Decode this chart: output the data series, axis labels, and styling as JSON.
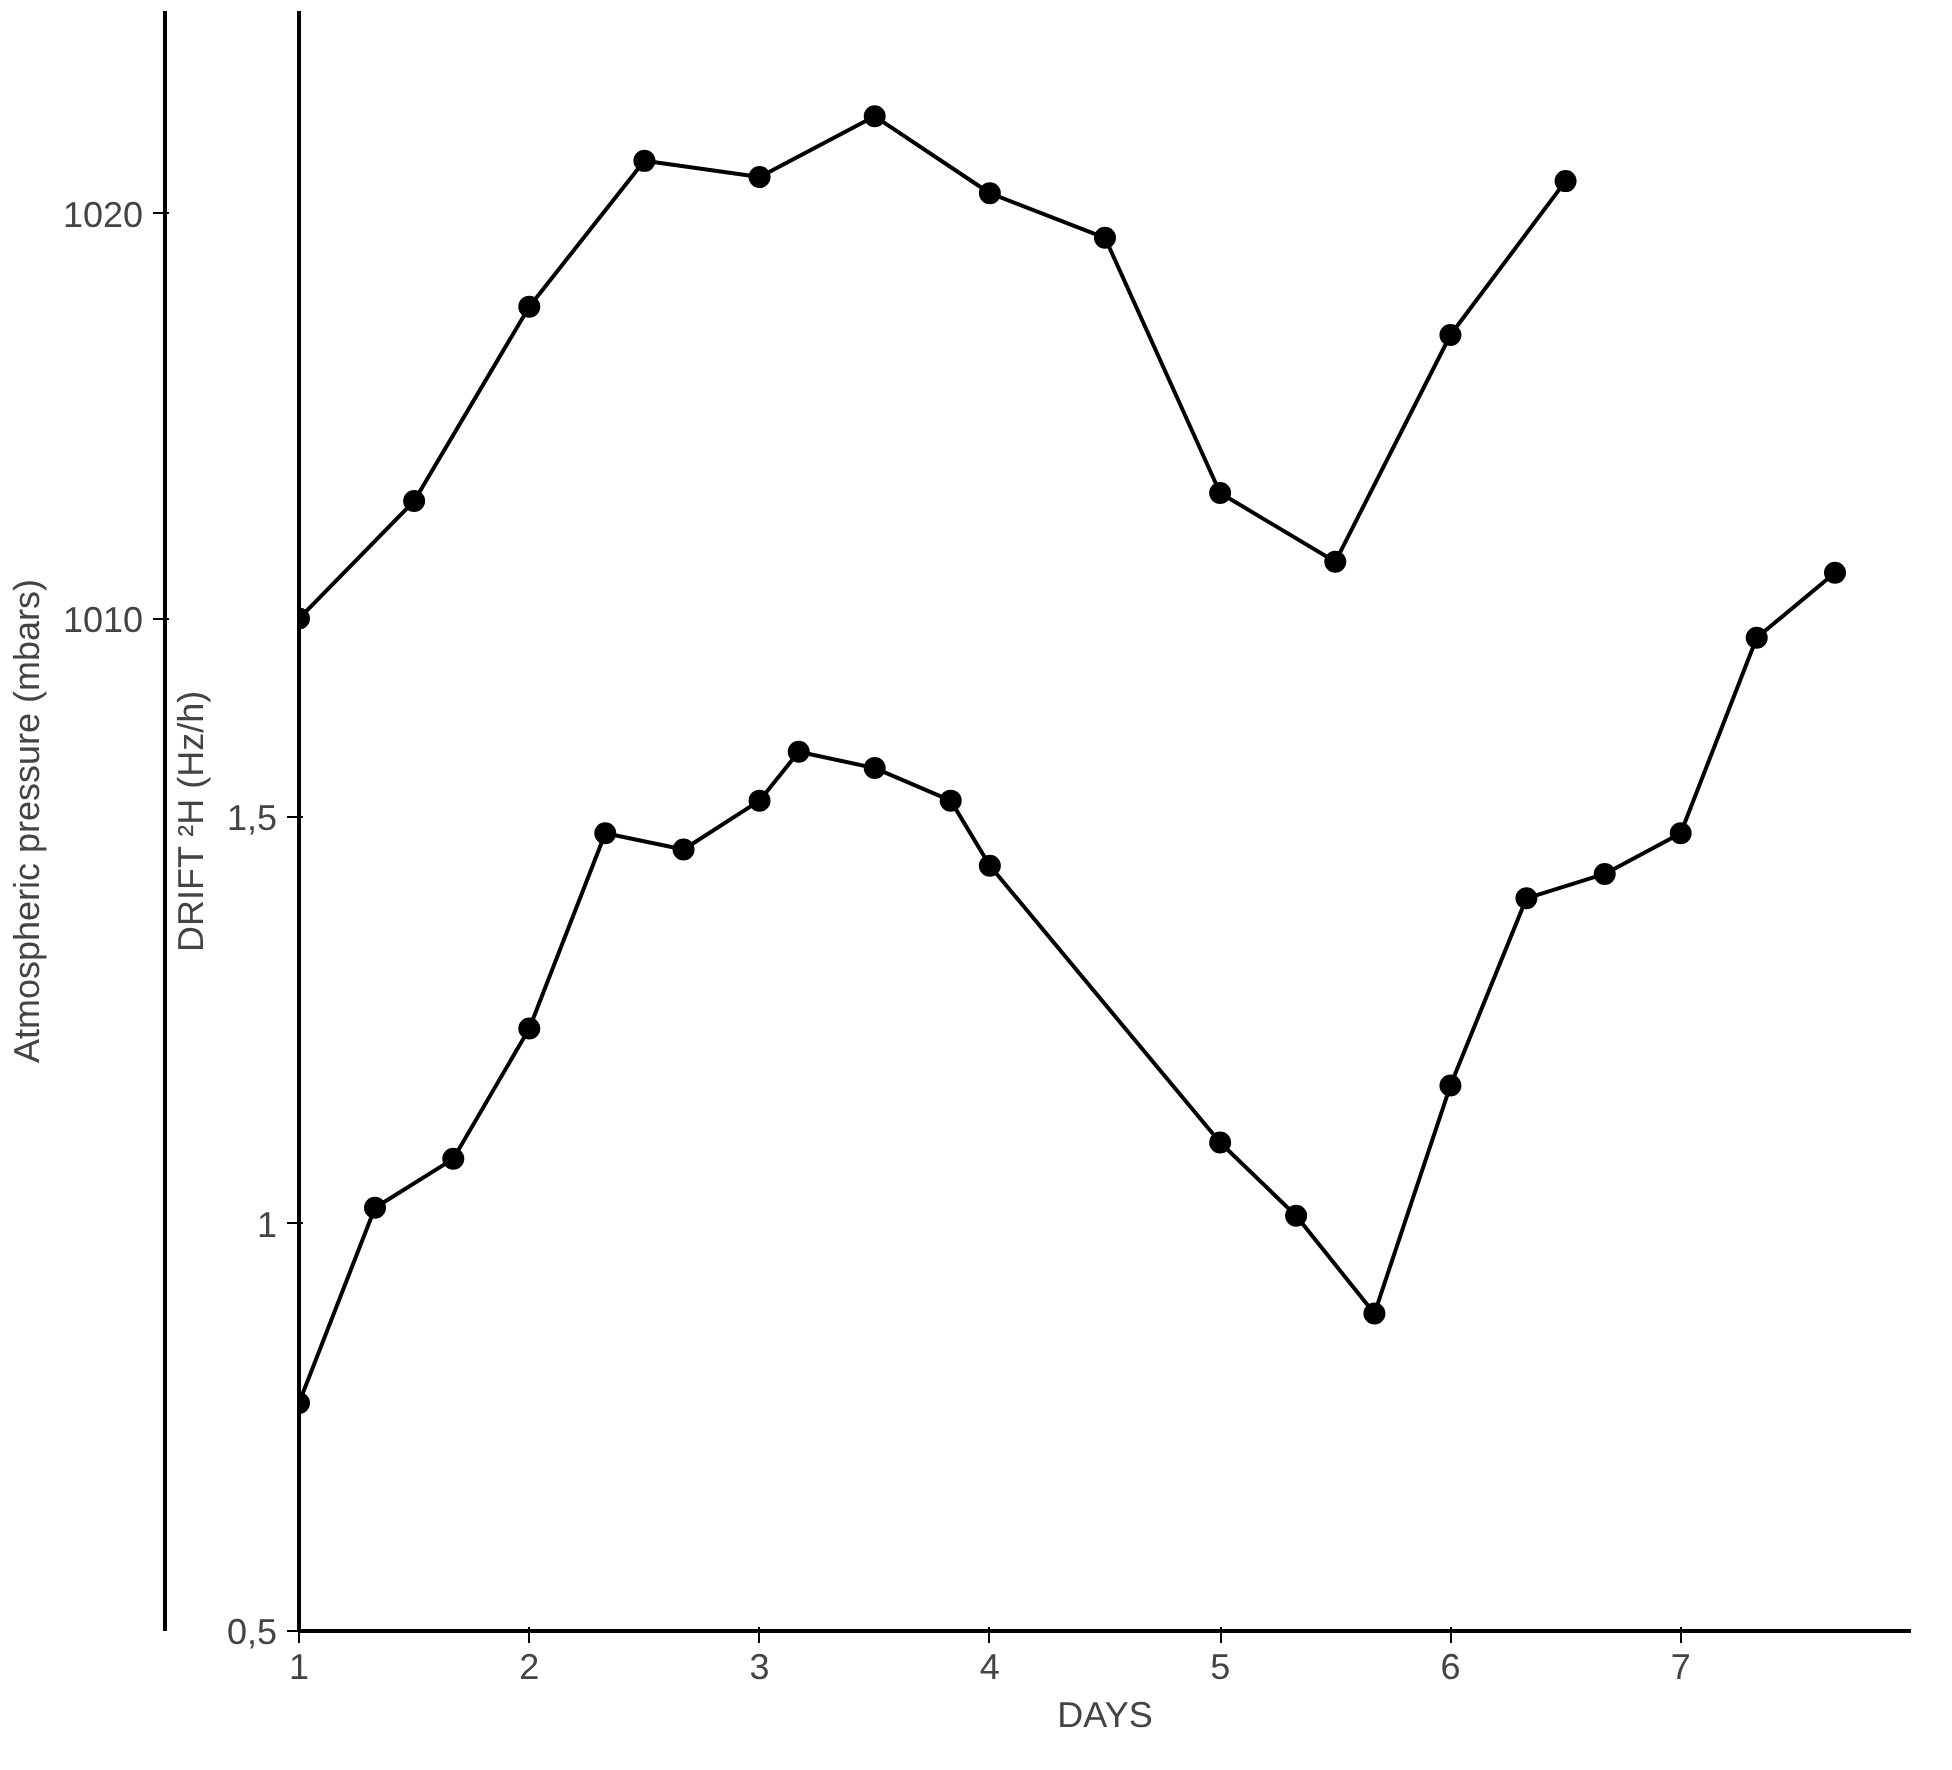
{
  "chart_data": {
    "type": "line",
    "xlabel": "DAYS",
    "ylabel": "DRIFT ²H (Hz/h)",
    "y2label": "Atmospheric pressure (mbars)",
    "xlim": [
      1,
      8
    ],
    "xticks": [
      1,
      2,
      3,
      4,
      5,
      6,
      7
    ],
    "ylim": [
      0.5,
      2.49
    ],
    "yticks": [
      {
        "value": 0.5,
        "label": "0,5"
      },
      1,
      {
        "value": 1.5,
        "label": "1,5"
      }
    ],
    "y2lim": [
      985,
      1025
    ],
    "y2ticks": [
      1010,
      1020
    ],
    "marker": "circle",
    "line_style": "solid",
    "grid": false,
    "series": [
      {
        "color": "#000000",
        "axis": "y2",
        "x": [
          1,
          1.5,
          2,
          2.5,
          3,
          3.5,
          4,
          4.5,
          5,
          5.5,
          6,
          6.5
        ],
        "values": [
          1010,
          1012.9,
          1017.7,
          1021.3,
          1020.9,
          1022.4,
          1020.5,
          1019.4,
          1013.1,
          1011.4,
          1017.0,
          1020.8
        ]
      },
      {
        "color": "#000000",
        "x": [
          1,
          1.33,
          1.67,
          2,
          2.33,
          2.67,
          3,
          3.17,
          3.5,
          3.83,
          4,
          5,
          5.33,
          5.67,
          6,
          6.33,
          6.67,
          7,
          7.33,
          7.67
        ],
        "values": [
          0.78,
          1.02,
          1.08,
          1.24,
          1.48,
          1.46,
          1.52,
          1.58,
          1.56,
          1.52,
          1.44,
          1.1,
          1.01,
          0.89,
          1.17,
          1.4,
          1.43,
          1.48,
          1.72,
          1.8
        ]
      }
    ]
  }
}
